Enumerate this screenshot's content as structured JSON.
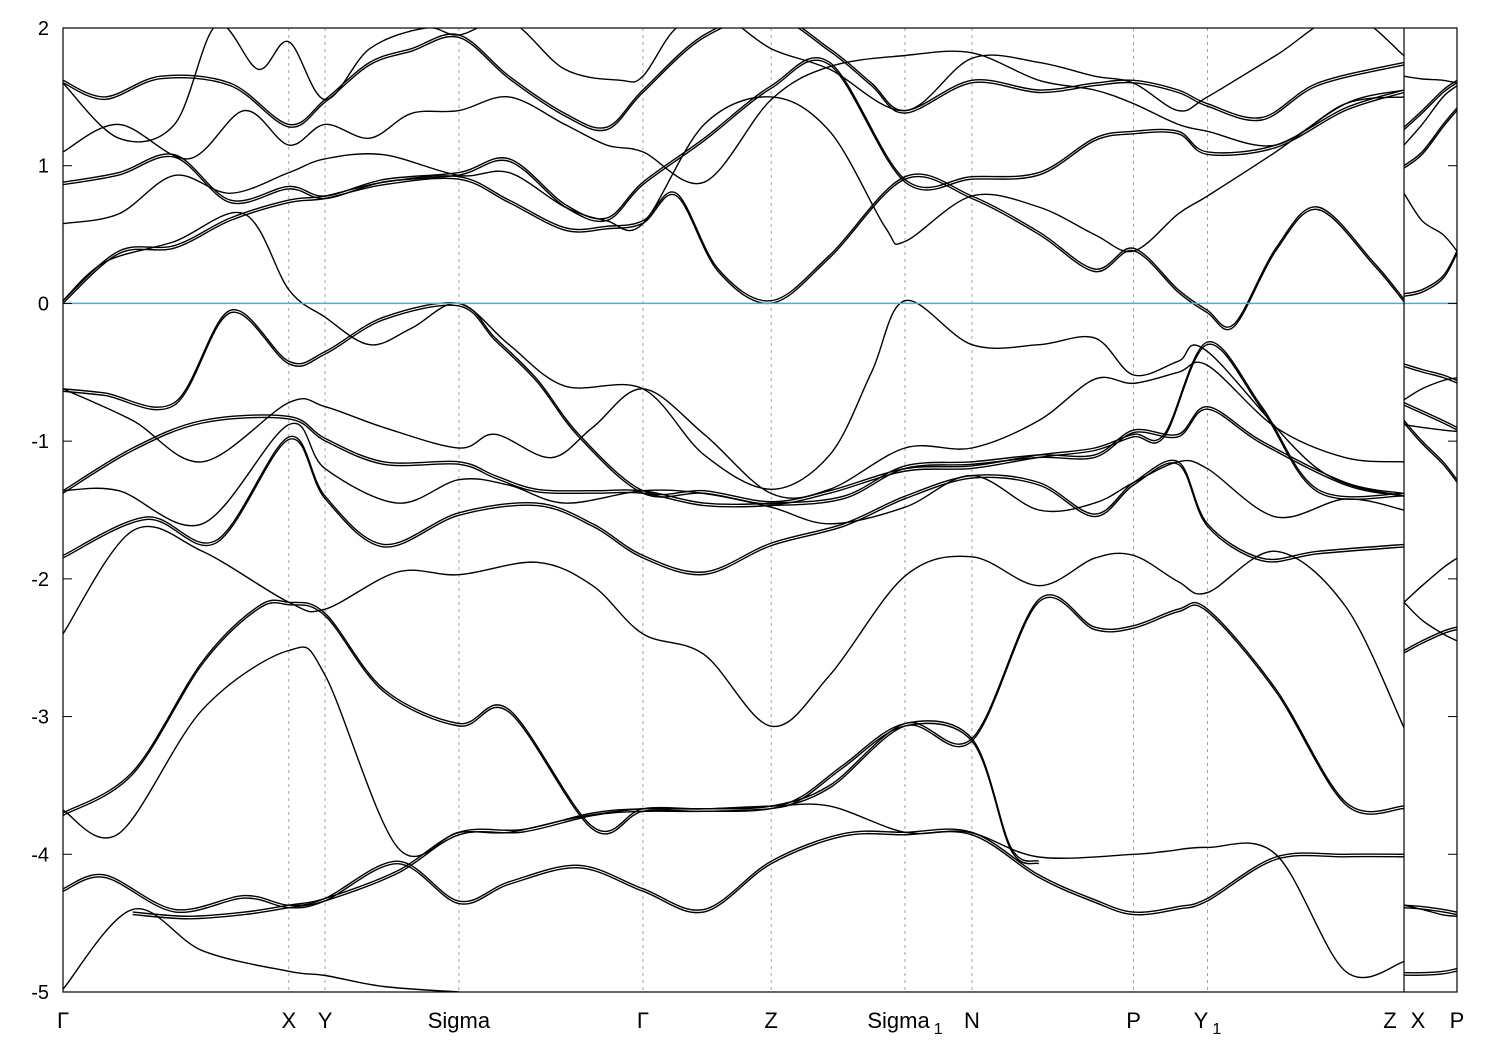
{
  "chart_data": {
    "type": "line",
    "title": "",
    "xlabel": "",
    "ylabel": "",
    "ylim": [
      -5,
      2
    ],
    "yticks": [
      -5,
      -4,
      -3,
      -2,
      -1,
      0,
      1,
      2
    ],
    "ytick_labels": [
      "-5",
      "-4",
      "-3",
      "-2",
      "-1",
      "0",
      "1",
      "2"
    ],
    "fermi_level": 0,
    "fermi_color": "#5aa9c7",
    "band_color": "#000000",
    "grid": "dashed vertical lines at high-symmetry points",
    "xlim": [
      0,
      1
    ],
    "break_at": 0.962,
    "kpoints": [
      {
        "label": "Γ",
        "sub": "",
        "x": 0.0
      },
      {
        "label": "X",
        "sub": "",
        "x": 0.162
      },
      {
        "label": "Y",
        "sub": "",
        "x": 0.188
      },
      {
        "label": "Sigma",
        "sub": "",
        "x": 0.284
      },
      {
        "label": "Γ",
        "sub": "",
        "x": 0.416
      },
      {
        "label": "Z",
        "sub": "",
        "x": 0.508
      },
      {
        "label": "Sigma",
        "sub": "1",
        "x": 0.604
      },
      {
        "label": "N",
        "sub": "",
        "x": 0.652
      },
      {
        "label": "P",
        "sub": "",
        "x": 0.768
      },
      {
        "label": "Y",
        "sub": "1",
        "x": 0.821
      },
      {
        "label": "Z",
        "sub": "",
        "x": 0.962
      },
      {
        "label": "X",
        "sub": "",
        "x": 0.962
      },
      {
        "label": "P",
        "sub": "",
        "x": 1.0
      }
    ],
    "series": [
      {
        "x": [
          0.0,
          0.03,
          0.08,
          0.13,
          0.162,
          0.188,
          0.24,
          0.284,
          0.32,
          0.37,
          0.416,
          0.46,
          0.508,
          0.56,
          0.604,
          0.652,
          0.7,
          0.74,
          0.768,
          0.8,
          0.821,
          0.87,
          0.92,
          0.962
        ],
        "y": [
          -4.25,
          -4.15,
          -4.4,
          -4.3,
          -4.37,
          -4.32,
          -4.05,
          -4.34,
          -4.2,
          -4.08,
          -4.25,
          -4.4,
          -4.05,
          -3.85,
          -3.84,
          -3.84,
          -4.15,
          -4.33,
          -4.42,
          -4.38,
          -4.32,
          -4.02,
          -4.0,
          -4.0
        ]
      },
      {
        "x": [
          0.0,
          0.05,
          0.1,
          0.162,
          0.188,
          0.23,
          0.284
        ],
        "y": [
          -4.98,
          -4.4,
          -4.7,
          -4.85,
          -4.88,
          -4.96,
          -5.0
        ]
      },
      {
        "x": [
          0.05,
          0.09,
          0.13,
          0.162,
          0.188,
          0.24,
          0.284,
          0.33,
          0.38,
          0.416,
          0.46,
          0.508,
          0.53,
          0.56,
          0.604,
          0.652,
          0.68,
          0.7
        ],
        "y": [
          -4.42,
          -4.45,
          -4.42,
          -4.37,
          -4.32,
          -4.12,
          -3.84,
          -3.82,
          -3.7,
          -3.67,
          -3.67,
          -3.65,
          -3.58,
          -3.35,
          -3.05,
          -3.16,
          -3.95,
          -4.05
        ]
      },
      {
        "x": [
          0.0,
          0.04,
          0.1,
          0.162,
          0.188,
          0.24,
          0.284,
          0.32,
          0.37,
          0.416,
          0.46,
          0.508,
          0.55,
          0.604,
          0.65,
          0.7,
          0.768,
          0.79,
          0.821,
          0.87,
          0.92,
          0.962
        ],
        "y": [
          -3.68,
          -3.85,
          -2.95,
          -2.52,
          -2.7,
          -3.95,
          -3.84,
          -3.84,
          -3.73,
          -3.67,
          -3.67,
          -3.65,
          -3.65,
          -3.84,
          -3.84,
          -4.02,
          -4.0,
          -3.98,
          -3.95,
          -4.0,
          -4.85,
          -4.78
        ]
      },
      {
        "x": [
          0.0,
          0.05,
          0.1,
          0.14,
          0.162,
          0.188,
          0.23,
          0.284,
          0.32,
          0.38,
          0.416,
          0.46,
          0.508,
          0.55,
          0.604,
          0.652,
          0.7,
          0.74,
          0.768,
          0.8,
          0.821,
          0.87,
          0.92,
          0.962
        ],
        "y": [
          -3.7,
          -3.4,
          -2.6,
          -2.2,
          -2.17,
          -2.25,
          -2.8,
          -3.05,
          -2.95,
          -3.8,
          -3.67,
          -3.67,
          -3.65,
          -3.5,
          -3.05,
          -3.16,
          -2.15,
          -2.35,
          -2.34,
          -2.22,
          -2.22,
          -2.8,
          -3.62,
          -3.65
        ]
      },
      {
        "x": [
          0.0,
          0.05,
          0.1,
          0.162,
          0.188,
          0.24,
          0.284,
          0.34,
          0.38,
          0.416,
          0.46,
          0.508,
          0.55,
          0.604,
          0.652,
          0.7,
          0.74,
          0.768,
          0.8,
          0.821,
          0.87,
          0.92,
          0.962
        ],
        "y": [
          -2.4,
          -1.65,
          -1.8,
          -2.17,
          -2.22,
          -1.95,
          -1.97,
          -1.88,
          -2.05,
          -2.4,
          -2.55,
          -3.07,
          -2.7,
          -1.98,
          -1.84,
          -2.05,
          -1.85,
          -1.83,
          -2.02,
          -2.1,
          -1.8,
          -2.2,
          -3.08
        ]
      },
      {
        "x": [
          0.0,
          0.06,
          0.11,
          0.162,
          0.188,
          0.23,
          0.284,
          0.34,
          0.38,
          0.416,
          0.46,
          0.508,
          0.56,
          0.604,
          0.652,
          0.7,
          0.74,
          0.768,
          0.8,
          0.821,
          0.86,
          0.9,
          0.962
        ],
        "y": [
          -1.83,
          -1.55,
          -1.72,
          -0.97,
          -1.4,
          -1.75,
          -1.52,
          -1.45,
          -1.6,
          -1.83,
          -1.95,
          -1.74,
          -1.6,
          -1.4,
          -1.25,
          -1.3,
          -1.53,
          -1.3,
          -1.15,
          -1.6,
          -1.85,
          -1.8,
          -1.75
        ]
      },
      {
        "x": [
          0.0,
          0.04,
          0.1,
          0.162,
          0.188,
          0.24,
          0.284,
          0.32,
          0.36,
          0.416,
          0.46,
          0.508,
          0.55,
          0.604,
          0.652,
          0.7,
          0.74,
          0.768,
          0.8,
          0.821,
          0.87,
          0.92,
          0.962
        ],
        "y": [
          -1.36,
          -1.36,
          -1.6,
          -0.88,
          -1.2,
          -1.45,
          -1.28,
          -1.32,
          -1.45,
          -1.36,
          -1.38,
          -1.48,
          -1.6,
          -1.48,
          -1.25,
          -1.5,
          -1.45,
          -1.3,
          -1.15,
          -1.2,
          -1.55,
          -1.42,
          -1.5
        ]
      },
      {
        "x": [
          0.0,
          0.05,
          0.1,
          0.162,
          0.188,
          0.23,
          0.284,
          0.31,
          0.34,
          0.38,
          0.416,
          0.46,
          0.508,
          0.56,
          0.604,
          0.652,
          0.7,
          0.74,
          0.768,
          0.8,
          0.821,
          0.86,
          0.92,
          0.962
        ],
        "y": [
          -1.36,
          -1.05,
          -0.85,
          -0.82,
          -0.98,
          -1.15,
          -1.15,
          -1.25,
          -1.35,
          -1.36,
          -1.36,
          -1.45,
          -1.45,
          -1.4,
          -1.18,
          -1.15,
          -1.1,
          -1.1,
          -0.92,
          -0.95,
          -0.75,
          -1.0,
          -1.3,
          -1.38
        ]
      },
      {
        "x": [
          0.0,
          0.05,
          0.1,
          0.162,
          0.188,
          0.23,
          0.284,
          0.31,
          0.35,
          0.38,
          0.416,
          0.46,
          0.508,
          0.55,
          0.604,
          0.652,
          0.7,
          0.74,
          0.768,
          0.8,
          0.821,
          0.87,
          0.92,
          0.962
        ],
        "y": [
          -0.62,
          -0.85,
          -1.15,
          -0.72,
          -0.75,
          -0.9,
          -1.05,
          -0.95,
          -1.12,
          -0.9,
          -0.62,
          -0.95,
          -1.38,
          -1.35,
          -1.05,
          -1.05,
          -0.85,
          -0.55,
          -0.58,
          -0.5,
          -0.45,
          -0.9,
          -1.12,
          -1.15
        ]
      },
      {
        "x": [
          0.0,
          0.03,
          0.08,
          0.12,
          0.162,
          0.188,
          0.23,
          0.284,
          0.31,
          0.34,
          0.37,
          0.416,
          0.46,
          0.508,
          0.55,
          0.604,
          0.652,
          0.7,
          0.74,
          0.768,
          0.79,
          0.821,
          0.86,
          0.9,
          0.962
        ],
        "y": [
          -0.62,
          -0.65,
          -0.72,
          -0.05,
          -0.42,
          -0.35,
          -0.1,
          0.0,
          -0.25,
          -0.55,
          -0.95,
          -1.36,
          -1.36,
          -1.44,
          -1.36,
          -1.2,
          -1.18,
          -1.1,
          -1.05,
          -0.95,
          -0.95,
          -0.28,
          -0.75,
          -1.35,
          -1.38
        ]
      },
      {
        "x": [
          0.0,
          0.03,
          0.08,
          0.13,
          0.162,
          0.188,
          0.22,
          0.25,
          0.284,
          0.32,
          0.36,
          0.416,
          0.46,
          0.508,
          0.55,
          0.58,
          0.604,
          0.652,
          0.7,
          0.74,
          0.768,
          0.8,
          0.821,
          0.9,
          0.962
        ],
        "y": [
          0.02,
          0.3,
          0.45,
          0.65,
          0.1,
          -0.1,
          -0.3,
          -0.18,
          0.0,
          -0.3,
          -0.6,
          -0.62,
          -1.1,
          -1.35,
          -1.1,
          -0.5,
          0.02,
          -0.3,
          -0.3,
          -0.25,
          -0.52,
          -0.42,
          -0.35,
          -1.2,
          -1.4
        ]
      },
      {
        "x": [
          0.0,
          0.04,
          0.08,
          0.12,
          0.162,
          0.188,
          0.23,
          0.284,
          0.32,
          0.36,
          0.39,
          0.416,
          0.44,
          0.47,
          0.508,
          0.55,
          0.604,
          0.652,
          0.7,
          0.74,
          0.768,
          0.8,
          0.821,
          0.84,
          0.87,
          0.9,
          0.94,
          0.962
        ],
        "y": [
          0.02,
          0.38,
          0.42,
          0.62,
          0.75,
          0.78,
          0.88,
          0.92,
          0.75,
          0.55,
          0.56,
          0.6,
          0.8,
          0.25,
          0.02,
          0.35,
          0.92,
          0.78,
          0.52,
          0.25,
          0.4,
          0.1,
          -0.05,
          -0.15,
          0.4,
          0.7,
          0.3,
          0.03
        ]
      },
      {
        "x": [
          0.0,
          0.04,
          0.08,
          0.12,
          0.162,
          0.188,
          0.23,
          0.284,
          0.32,
          0.36,
          0.39,
          0.416,
          0.46,
          0.508,
          0.55,
          0.59,
          0.604,
          0.652,
          0.7,
          0.74,
          0.768,
          0.8,
          0.821,
          0.87,
          0.92,
          0.962
        ],
        "y": [
          0.58,
          0.65,
          0.93,
          0.8,
          0.95,
          1.05,
          1.08,
          0.93,
          0.95,
          0.7,
          0.6,
          0.58,
          1.3,
          1.5,
          1.25,
          0.55,
          0.45,
          0.78,
          0.7,
          0.5,
          0.38,
          0.65,
          0.78,
          1.1,
          1.45,
          1.55
        ]
      },
      {
        "x": [
          0.0,
          0.04,
          0.08,
          0.12,
          0.162,
          0.188,
          0.23,
          0.284,
          0.32,
          0.36,
          0.39,
          0.416,
          0.46,
          0.508,
          0.55,
          0.604,
          0.652,
          0.7,
          0.74,
          0.768,
          0.8,
          0.821,
          0.87,
          0.92,
          0.962
        ],
        "y": [
          0.88,
          0.95,
          1.08,
          0.75,
          0.85,
          0.78,
          0.9,
          0.95,
          1.05,
          0.72,
          0.62,
          0.88,
          1.2,
          1.58,
          1.75,
          0.9,
          0.92,
          0.95,
          1.2,
          1.25,
          1.25,
          1.1,
          1.15,
          1.42,
          1.55
        ]
      },
      {
        "x": [
          0.0,
          0.04,
          0.09,
          0.13,
          0.162,
          0.188,
          0.22,
          0.25,
          0.284,
          0.32,
          0.36,
          0.39,
          0.416,
          0.46,
          0.508,
          0.55,
          0.604,
          0.652,
          0.7,
          0.74,
          0.768,
          0.8,
          0.821,
          0.87,
          0.92,
          0.962
        ],
        "y": [
          1.1,
          1.3,
          1.05,
          1.4,
          1.15,
          1.3,
          1.2,
          1.38,
          1.4,
          1.5,
          1.3,
          1.15,
          1.1,
          0.88,
          1.48,
          1.72,
          1.8,
          1.82,
          1.62,
          1.55,
          1.45,
          1.3,
          1.25,
          1.15,
          1.45,
          1.5
        ]
      },
      {
        "x": [
          0.0,
          0.03,
          0.07,
          0.12,
          0.162,
          0.188,
          0.22,
          0.25,
          0.284,
          0.32,
          0.36,
          0.39,
          0.416,
          0.46,
          0.508,
          0.55,
          0.58,
          0.604,
          0.652,
          0.7,
          0.74,
          0.768,
          0.8,
          0.821,
          0.86,
          0.9,
          0.962
        ],
        "y": [
          1.62,
          1.5,
          1.65,
          1.6,
          1.3,
          1.48,
          1.75,
          1.85,
          1.95,
          1.65,
          1.38,
          1.28,
          1.55,
          1.95,
          2.1,
          1.85,
          1.6,
          1.4,
          1.62,
          1.55,
          1.6,
          1.62,
          1.55,
          1.45,
          1.35,
          1.6,
          1.75
        ]
      },
      {
        "x": [
          0.0,
          0.04,
          0.08,
          0.11,
          0.14,
          0.162,
          0.188,
          0.22,
          0.26,
          0.284,
          0.32,
          0.36,
          0.4,
          0.416,
          0.44,
          0.47,
          0.508,
          0.55,
          0.604,
          0.652,
          0.7,
          0.74,
          0.768,
          0.8,
          0.821,
          0.87,
          0.92,
          0.962
        ],
        "y": [
          1.6,
          1.2,
          1.3,
          2.02,
          1.7,
          1.9,
          1.48,
          1.85,
          2.0,
          1.95,
          2.05,
          1.7,
          1.62,
          1.65,
          2.0,
          2.1,
          1.85,
          1.7,
          1.4,
          1.78,
          1.75,
          1.65,
          1.6,
          1.4,
          1.5,
          1.8,
          2.1,
          1.8
        ]
      },
      {
        "x": [
          0.962,
          0.975,
          0.99,
          1.0
        ],
        "y": [
          0.07,
          0.1,
          0.2,
          0.38
        ]
      },
      {
        "x": [
          0.962,
          0.975,
          0.99,
          1.0
        ],
        "y": [
          0.8,
          0.6,
          0.5,
          0.38
        ]
      },
      {
        "x": [
          0.962,
          0.975,
          0.99,
          1.0
        ],
        "y": [
          1.0,
          1.1,
          1.3,
          1.42
        ]
      },
      {
        "x": [
          0.962,
          0.975,
          0.99,
          1.0
        ],
        "y": [
          1.15,
          1.3,
          1.5,
          1.58
        ]
      },
      {
        "x": [
          0.962,
          0.975,
          0.99,
          1.0
        ],
        "y": [
          1.28,
          1.4,
          1.55,
          1.62
        ]
      },
      {
        "x": [
          0.962,
          0.975,
          0.99,
          1.0
        ],
        "y": [
          1.65,
          1.63,
          1.62,
          1.6
        ]
      },
      {
        "x": [
          0.962,
          0.975,
          0.99,
          1.0
        ],
        "y": [
          -0.44,
          -0.48,
          -0.52,
          -0.56
        ]
      },
      {
        "x": [
          0.962,
          0.975,
          0.99,
          1.0
        ],
        "y": [
          -0.7,
          -0.62,
          -0.56,
          -0.54
        ]
      },
      {
        "x": [
          0.962,
          0.975,
          0.99,
          1.0
        ],
        "y": [
          -0.72,
          -0.78,
          -0.85,
          -0.9
        ]
      },
      {
        "x": [
          0.962,
          0.975,
          0.99,
          1.0
        ],
        "y": [
          -0.88,
          -0.9,
          -0.92,
          -0.93
        ]
      },
      {
        "x": [
          0.962,
          0.975,
          0.99,
          1.0
        ],
        "y": [
          -0.85,
          -1.0,
          -1.15,
          -1.28
        ]
      },
      {
        "x": [
          0.962,
          0.975,
          0.99,
          1.0
        ],
        "y": [
          -2.17,
          -2.3,
          -2.4,
          -2.45
        ]
      },
      {
        "x": [
          0.962,
          0.975,
          0.99,
          1.0
        ],
        "y": [
          -2.52,
          -2.45,
          -2.38,
          -2.35
        ]
      },
      {
        "x": [
          0.962,
          0.975,
          0.99,
          1.0
        ],
        "y": [
          -2.17,
          -2.05,
          -1.92,
          -1.85
        ]
      },
      {
        "x": [
          0.962,
          0.975,
          0.99,
          1.0
        ],
        "y": [
          -4.37,
          -4.38,
          -4.4,
          -4.42
        ]
      },
      {
        "x": [
          0.962,
          0.975,
          0.99,
          1.0
        ],
        "y": [
          -4.37,
          -4.4,
          -4.44,
          -4.45
        ]
      },
      {
        "x": [
          0.962,
          0.975,
          0.99,
          1.0
        ],
        "y": [
          -4.86,
          -4.86,
          -4.85,
          -4.83
        ]
      }
    ]
  }
}
